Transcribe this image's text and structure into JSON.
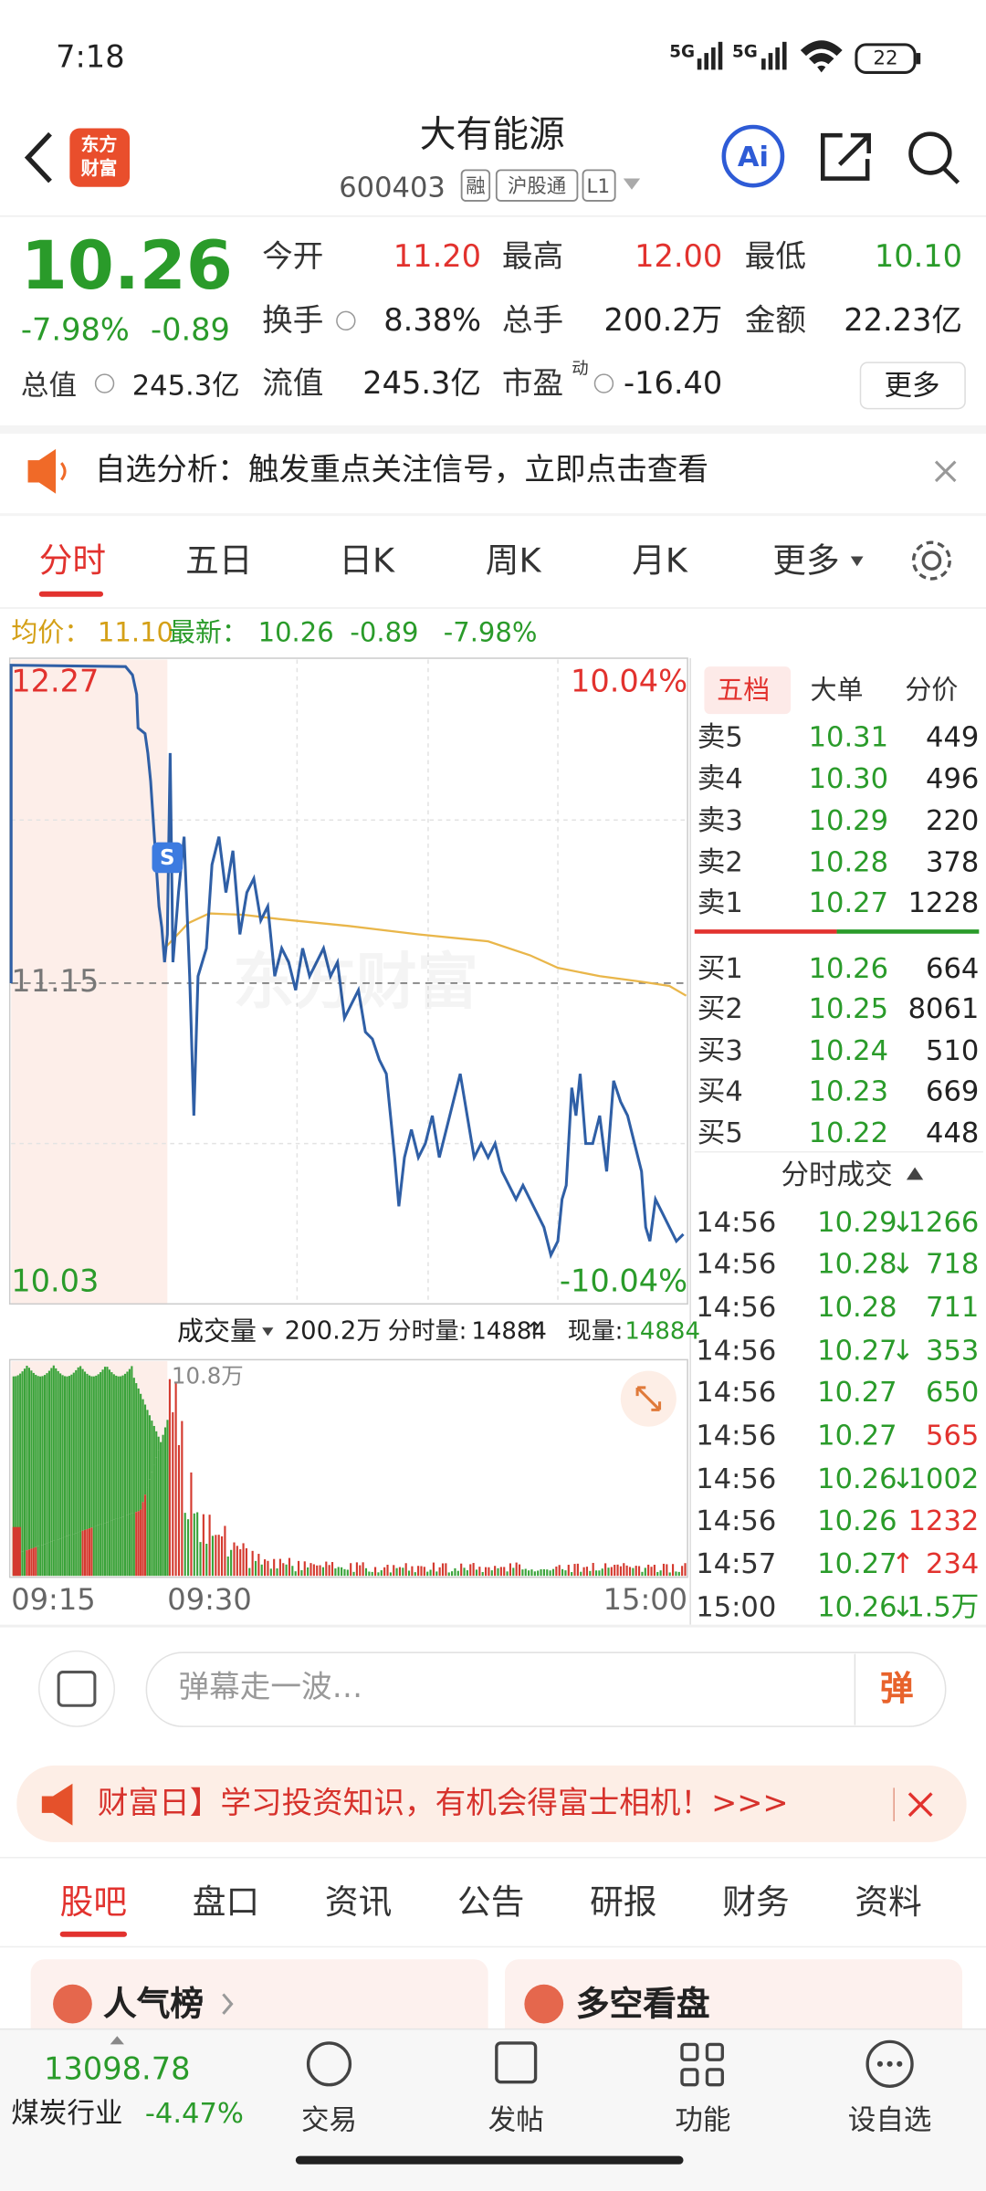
{
  "status_bar": {
    "time": "7:18",
    "network": [
      "5G",
      "5G"
    ],
    "battery": "22"
  },
  "header": {
    "logo": [
      "东方",
      "财富"
    ],
    "title": "大有能源",
    "code": "600403",
    "tags": [
      "融",
      "沪股通",
      "L1"
    ],
    "ai": "Ai"
  },
  "quote": {
    "price": "10.26",
    "change_pct": "-7.98%",
    "change": "-0.89",
    "stats": [
      {
        "label": "今开",
        "value": "11.20"
      },
      {
        "label": "最高",
        "value": "12.00"
      },
      {
        "label": "最低",
        "value": "10.10"
      },
      {
        "label": "换手",
        "value": "8.38%"
      },
      {
        "label": "总手",
        "value": "200.2万"
      },
      {
        "label": "金额",
        "value": "22.23亿"
      },
      {
        "label": "总值",
        "value": "245.3亿"
      },
      {
        "label": "流值",
        "value": "245.3亿"
      },
      {
        "label": "市盈",
        "sup": "动",
        "value": "-16.40"
      }
    ],
    "more": "更多"
  },
  "notice": {
    "text": "自选分析：触发重点关注信号，立即点击查看"
  },
  "chart_tabs": [
    "分时",
    "五日",
    "日K",
    "周K",
    "月K",
    "更多"
  ],
  "chart_info": {
    "avg_label": "均价：",
    "avg": "11.10",
    "latest_label": "最新：",
    "latest": "10.26",
    "change": "-0.89",
    "change_pct": "-7.98%"
  },
  "price_axis": {
    "high": "12.27",
    "mid": "11.15",
    "low": "10.03",
    "high_pct": "10.04%",
    "low_pct": "-10.04%",
    "watermark": "东方财富",
    "badge": "S"
  },
  "order_book": {
    "tabs": [
      "五档",
      "大单",
      "分价"
    ],
    "asks": [
      [
        "卖5",
        "10.31",
        "449"
      ],
      [
        "卖4",
        "10.30",
        "496"
      ],
      [
        "卖3",
        "10.29",
        "220"
      ],
      [
        "卖2",
        "10.28",
        "378"
      ],
      [
        "卖1",
        "10.27",
        "1228"
      ]
    ],
    "bids": [
      [
        "买1",
        "10.26",
        "664"
      ],
      [
        "买2",
        "10.25",
        "8061"
      ],
      [
        "买3",
        "10.24",
        "510"
      ],
      [
        "买4",
        "10.23",
        "669"
      ],
      [
        "买5",
        "10.22",
        "448"
      ]
    ]
  },
  "trades": {
    "title": "分时成交",
    "rows": [
      {
        "time": "14:56",
        "price": "10.29",
        "arrow": "↓",
        "volume": "1266",
        "color": "#2a9b2a"
      },
      {
        "time": "14:56",
        "price": "10.28",
        "arrow": "↓",
        "volume": "718",
        "color": "#2a9b2a"
      },
      {
        "time": "14:56",
        "price": "10.28",
        "volume": "711",
        "color": "#2a9b2a"
      },
      {
        "time": "14:56",
        "price": "10.27",
        "arrow": "↓",
        "volume": "353",
        "color": "#2a9b2a"
      },
      {
        "time": "14:56",
        "price": "10.27",
        "volume": "650",
        "color": "#2a9b2a"
      },
      {
        "time": "14:56",
        "price": "10.27",
        "volume": "565",
        "color": "#e2322e"
      },
      {
        "time": "14:56",
        "price": "10.26",
        "arrow": "↓",
        "volume": "1002",
        "color": "#2a9b2a"
      },
      {
        "time": "14:56",
        "price": "10.26",
        "volume": "1232",
        "color": "#e2322e"
      },
      {
        "time": "14:57",
        "price": "10.27",
        "arrow": "↑",
        "volume": "234",
        "color": "#e2322e"
      },
      {
        "time": "15:00",
        "price": "10.26",
        "arrow": "↓",
        "volume": "1.5万",
        "color": "#2a9b2a"
      }
    ]
  },
  "volume": {
    "label": "成交量",
    "total": "200.2万",
    "period_label": "分时量:",
    "period": "14884",
    "period_arrow": "↑",
    "now_label": "现量:",
    "now": "14884",
    "max": "10.8万"
  },
  "time_axis": [
    "09:15",
    "09:30",
    "15:00"
  ],
  "comment": {
    "placeholder": "弹幕走一波…",
    "button": "弹"
  },
  "banner": {
    "text": "财富日】学习投资知识，有机会得富士相机！>>>"
  },
  "bottom_tabs": [
    "股吧",
    "盘口",
    "资讯",
    "公告",
    "研报",
    "财务",
    "资料"
  ],
  "cards": [
    "人气榜",
    "多空看盘"
  ],
  "footer": {
    "index": "13098.78",
    "industry": "煤炭行业",
    "industry_change": "-4.47%",
    "nav": [
      "交易",
      "发帖",
      "功能",
      "设自选"
    ]
  }
}
